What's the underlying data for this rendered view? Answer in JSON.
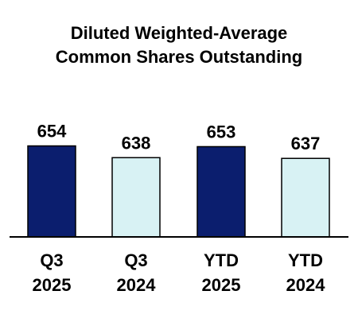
{
  "chart_data": {
    "type": "bar",
    "title_lines": [
      "Diluted Weighted-Average",
      "Common Shares Outstanding"
    ],
    "categories": [
      [
        "Q3",
        "2025"
      ],
      [
        "Q3",
        "2024"
      ],
      [
        "YTD",
        "2025"
      ],
      [
        "YTD",
        "2024"
      ]
    ],
    "values": [
      654,
      638,
      653,
      637
    ],
    "value_labels": [
      "654",
      "638",
      "653",
      "637"
    ],
    "ylim": [
      530,
      660
    ],
    "grid": false,
    "colors": {
      "bars": [
        "#0b1e6e",
        "#d8f2f4",
        "#0b1e6e",
        "#d8f2f4"
      ],
      "bar_outline": "#000000",
      "axis": "#000000"
    }
  }
}
